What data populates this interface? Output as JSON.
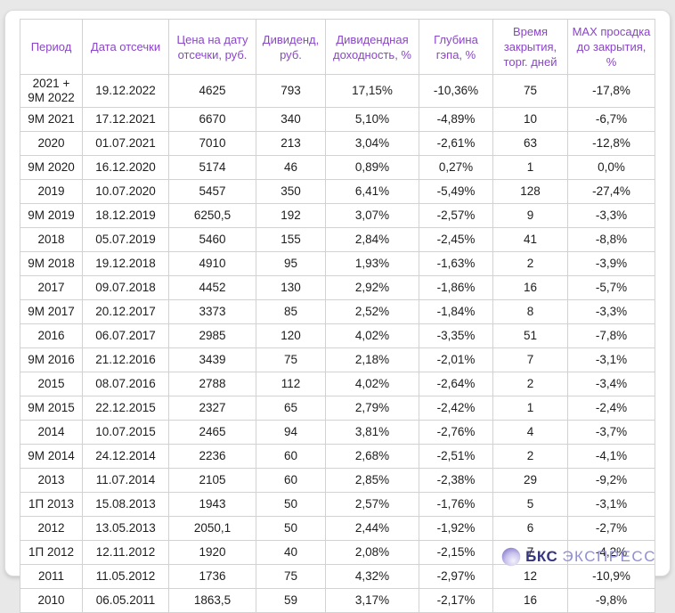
{
  "colors": {
    "page_bg": "#e8e8e8",
    "card_bg": "#ffffff",
    "border": "#d2d2d2",
    "header_text": "#8a46c8",
    "body_text": "#1d1d1d",
    "brand_dark": "#34357e",
    "brand_light": "#8f8ed6"
  },
  "chart_data": {
    "type": "table",
    "columns": [
      "Период",
      "Дата отсечки",
      "Цена на дату\nотсечки, руб.",
      "Дивиденд,\nруб.",
      "Дивидендная\nдоходность, %",
      "Глубина\nгэпа, %",
      "Время\nзакрытия,\nторг. дней",
      "MAX просадка\nдо закрытия,\n%"
    ],
    "rows": [
      [
        "2021 +\n9М 2022",
        "19.12.2022",
        "4625",
        "793",
        "17,15%",
        "-10,36%",
        "75",
        "-17,8%"
      ],
      [
        "9М 2021",
        "17.12.2021",
        "6670",
        "340",
        "5,10%",
        "-4,89%",
        "10",
        "-6,7%"
      ],
      [
        "2020",
        "01.07.2021",
        "7010",
        "213",
        "3,04%",
        "-2,61%",
        "63",
        "-12,8%"
      ],
      [
        "9М 2020",
        "16.12.2020",
        "5174",
        "46",
        "0,89%",
        "0,27%",
        "1",
        "0,0%"
      ],
      [
        "2019",
        "10.07.2020",
        "5457",
        "350",
        "6,41%",
        "-5,49%",
        "128",
        "-27,4%"
      ],
      [
        "9М 2019",
        "18.12.2019",
        "6250,5",
        "192",
        "3,07%",
        "-2,57%",
        "9",
        "-3,3%"
      ],
      [
        "2018",
        "05.07.2019",
        "5460",
        "155",
        "2,84%",
        "-2,45%",
        "41",
        "-8,8%"
      ],
      [
        "9М 2018",
        "19.12.2018",
        "4910",
        "95",
        "1,93%",
        "-1,63%",
        "2",
        "-3,9%"
      ],
      [
        "2017",
        "09.07.2018",
        "4452",
        "130",
        "2,92%",
        "-1,86%",
        "16",
        "-5,7%"
      ],
      [
        "9М 2017",
        "20.12.2017",
        "3373",
        "85",
        "2,52%",
        "-1,84%",
        "8",
        "-3,3%"
      ],
      [
        "2016",
        "06.07.2017",
        "2985",
        "120",
        "4,02%",
        "-3,35%",
        "51",
        "-7,8%"
      ],
      [
        "9М 2016",
        "21.12.2016",
        "3439",
        "75",
        "2,18%",
        "-2,01%",
        "7",
        "-3,1%"
      ],
      [
        "2015",
        "08.07.2016",
        "2788",
        "112",
        "4,02%",
        "-2,64%",
        "2",
        "-3,4%"
      ],
      [
        "9М 2015",
        "22.12.2015",
        "2327",
        "65",
        "2,79%",
        "-2,42%",
        "1",
        "-2,4%"
      ],
      [
        "2014",
        "10.07.2015",
        "2465",
        "94",
        "3,81%",
        "-2,76%",
        "4",
        "-3,7%"
      ],
      [
        "9М 2014",
        "24.12.2014",
        "2236",
        "60",
        "2,68%",
        "-2,51%",
        "2",
        "-4,1%"
      ],
      [
        "2013",
        "11.07.2014",
        "2105",
        "60",
        "2,85%",
        "-2,38%",
        "29",
        "-9,2%"
      ],
      [
        "1П 2013",
        "15.08.2013",
        "1943",
        "50",
        "2,57%",
        "-1,76%",
        "5",
        "-3,1%"
      ],
      [
        "2012",
        "13.05.2013",
        "2050,1",
        "50",
        "2,44%",
        "-1,92%",
        "6",
        "-2,7%"
      ],
      [
        "1П 2012",
        "12.11.2012",
        "1920",
        "40",
        "2,08%",
        "-2,15%",
        "7",
        "-4,2%"
      ],
      [
        "2011",
        "11.05.2012",
        "1736",
        "75",
        "4,32%",
        "-2,97%",
        "12",
        "-10,9%"
      ],
      [
        "2010",
        "06.05.2011",
        "1863,5",
        "59",
        "3,17%",
        "-2,17%",
        "16",
        "-9,8%"
      ]
    ]
  },
  "footer": {
    "brand_bold": "БКС",
    "brand_light": "ЭКСПРЕСС"
  }
}
